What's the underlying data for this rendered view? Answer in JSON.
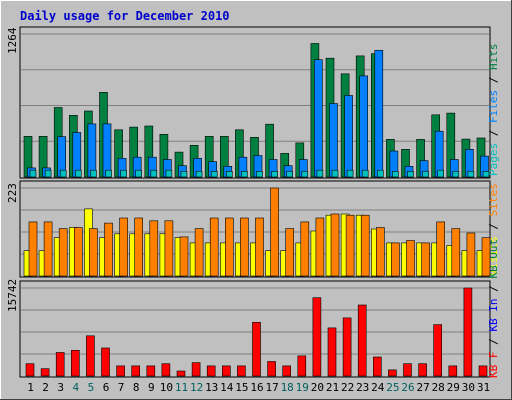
{
  "chart_data": [
    {
      "type": "bar",
      "panel": "hits-files-pages",
      "title": "Daily usage for December 2010",
      "y_max_label": "1264",
      "ylim": [
        0,
        1264
      ],
      "categories": [
        "1",
        "2",
        "3",
        "4",
        "5",
        "6",
        "7",
        "8",
        "9",
        "10",
        "11",
        "12",
        "13",
        "14",
        "15",
        "16",
        "17",
        "18",
        "19",
        "20",
        "21",
        "22",
        "23",
        "24",
        "25",
        "26",
        "27",
        "28",
        "29",
        "30",
        "31"
      ],
      "legend": [
        {
          "text": "Pages",
          "color": "#00c0c0"
        },
        {
          "text": " / ",
          "color": "#000000"
        },
        {
          "text": "Files",
          "color": "#0080ff"
        },
        {
          "text": " / ",
          "color": "#000000"
        },
        {
          "text": "Hits",
          "color": "#008040"
        }
      ],
      "series": [
        {
          "name": "Hits",
          "color": "#008040",
          "values": [
            360,
            360,
            614,
            545,
            583,
            749,
            417,
            441,
            451,
            377,
            220,
            280,
            360,
            360,
            417,
            351,
            467,
            209,
            301,
            1180,
            1050,
            912,
            1070,
            1090,
            332,
            245,
            332,
            550,
            565,
            335,
            345
          ]
        },
        {
          "name": "Files",
          "color": "#0080ff",
          "values": [
            80,
            80,
            356,
            393,
            469,
            469,
            165,
            175,
            175,
            155,
            100,
            165,
            135,
            95,
            175,
            190,
            155,
            100,
            155,
            1037,
            650,
            720,
            894,
            1120,
            230,
            95,
            145,
            405,
            155,
            245,
            185
          ]
        },
        {
          "name": "Pages",
          "color": "#00c0c0",
          "values": [
            60,
            60,
            60,
            60,
            60,
            60,
            60,
            60,
            60,
            60,
            50,
            50,
            50,
            50,
            50,
            50,
            50,
            50,
            50,
            60,
            60,
            60,
            60,
            60,
            50,
            50,
            50,
            60,
            50,
            50,
            50
          ]
        }
      ]
    },
    {
      "type": "bar",
      "panel": "visits-sites",
      "y_max_label": "223",
      "ylim": [
        0,
        223
      ],
      "legend": [
        {
          "text": "Visits",
          "color": "#ffff00"
        },
        {
          "text": " / ",
          "color": "#000000"
        },
        {
          "text": "Sites",
          "color": "#ff8000"
        }
      ],
      "series": [
        {
          "name": "Sites",
          "color": "#ff8000",
          "values": [
            137,
            137,
            120,
            123,
            120,
            134,
            147,
            147,
            140,
            140,
            99,
            120,
            147,
            147,
            147,
            147,
            223,
            120,
            137,
            147,
            157,
            154,
            154,
            123,
            84,
            90,
            84,
            137,
            120,
            109,
            97
          ]
        },
        {
          "name": "Visits",
          "color": "#ffff00",
          "values": [
            64,
            64,
            97,
            123,
            170,
            97,
            107,
            107,
            107,
            107,
            97,
            84,
            84,
            84,
            84,
            84,
            64,
            64,
            84,
            114,
            154,
            157,
            154,
            119,
            84,
            84,
            84,
            84,
            77,
            64,
            64
          ]
        }
      ]
    },
    {
      "type": "bar",
      "panel": "kbytes",
      "y_max_label": "15742",
      "ylim": [
        0,
        15742
      ],
      "legend": [
        {
          "text": "KB F",
          "color": "#ff0000"
        },
        {
          "text": " / ",
          "color": "#000000"
        },
        {
          "text": "KB In",
          "color": "#0000ff"
        },
        {
          "text": " / ",
          "color": "#000000"
        },
        {
          "text": "KB Out",
          "color": "#008040"
        }
      ],
      "series": [
        {
          "name": "KBytes",
          "color": "#ff0000",
          "values": [
            2200,
            1300,
            4200,
            4600,
            7200,
            5000,
            1800,
            1800,
            1800,
            2200,
            900,
            2400,
            1800,
            1800,
            1800,
            9600,
            2600,
            1800,
            3600,
            14000,
            8600,
            10400,
            12700,
            3400,
            1100,
            2200,
            2200,
            9200,
            1800,
            15742,
            1800
          ]
        }
      ]
    }
  ],
  "x_labels": [
    "1",
    "2",
    "3",
    "4",
    "5",
    "6",
    "7",
    "8",
    "9",
    "10",
    "11",
    "12",
    "13",
    "14",
    "15",
    "16",
    "17",
    "18",
    "19",
    "20",
    "21",
    "22",
    "23",
    "24",
    "25",
    "26",
    "27",
    "28",
    "29",
    "30",
    "31"
  ],
  "x_label_colors": [
    "#000000",
    "#000000",
    "#000000",
    "#006060",
    "#006060",
    "#000000",
    "#000000",
    "#000000",
    "#000000",
    "#000000",
    "#006060",
    "#006060",
    "#000000",
    "#000000",
    "#000000",
    "#000000",
    "#000000",
    "#006060",
    "#006060",
    "#000000",
    "#000000",
    "#000000",
    "#000000",
    "#000000",
    "#006060",
    "#006060",
    "#000000",
    "#000000",
    "#000000",
    "#000000",
    "#000000"
  ],
  "colors": {
    "background": "#c0c0c0",
    "grid": "#808080",
    "title": "#0000cc",
    "frame_light": "#ffffff",
    "frame_dark": "#404040"
  }
}
